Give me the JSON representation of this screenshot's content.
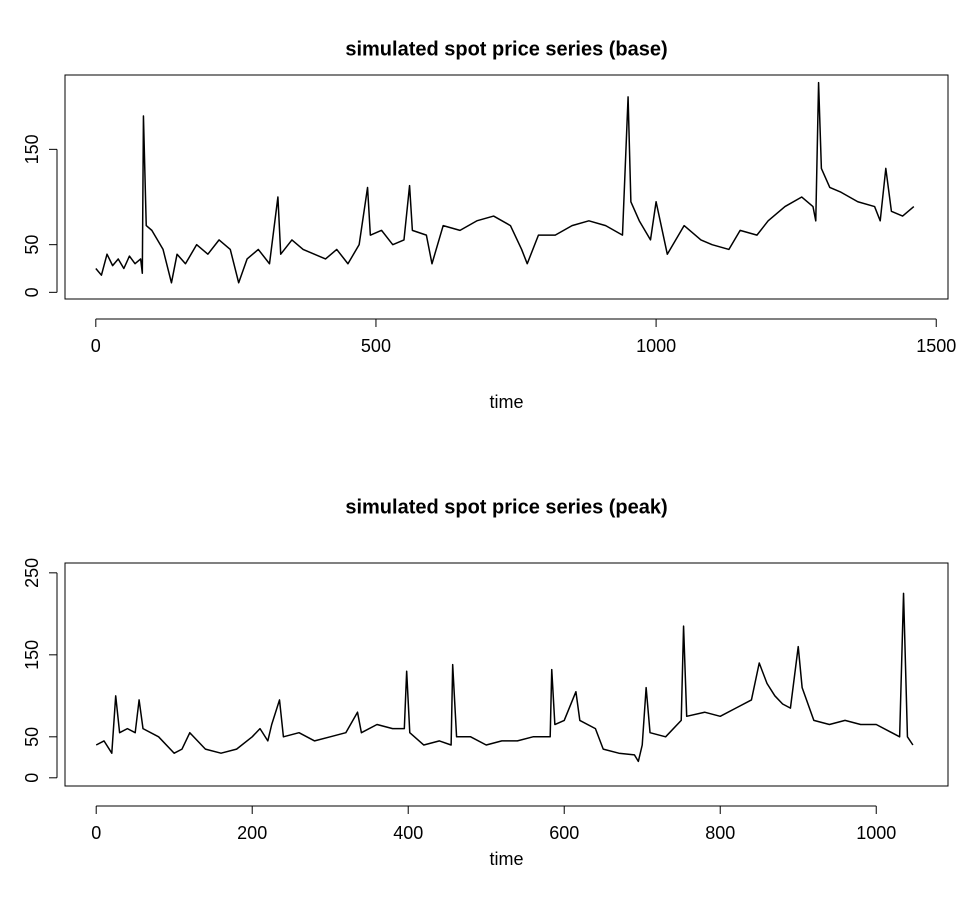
{
  "chart_data": [
    {
      "type": "line",
      "title": "simulated spot price series (base)",
      "x_label": "time",
      "x": [
        0,
        10,
        20,
        30,
        40,
        50,
        60,
        70,
        80,
        83,
        85,
        90,
        100,
        110,
        120,
        135,
        145,
        160,
        180,
        200,
        220,
        240,
        255,
        270,
        290,
        310,
        325,
        330,
        350,
        370,
        390,
        410,
        430,
        450,
        470,
        485,
        490,
        510,
        530,
        550,
        560,
        565,
        590,
        600,
        620,
        650,
        680,
        710,
        740,
        760,
        770,
        790,
        820,
        850,
        880,
        910,
        940,
        950,
        955,
        970,
        990,
        1000,
        1020,
        1050,
        1080,
        1100,
        1130,
        1150,
        1180,
        1200,
        1230,
        1260,
        1280,
        1285,
        1290,
        1295,
        1310,
        1330,
        1360,
        1390,
        1400,
        1410,
        1420,
        1440,
        1460
      ],
      "series": [
        {
          "color": "#000000",
          "values": [
            25,
            18,
            40,
            28,
            35,
            25,
            38,
            30,
            35,
            20,
            185,
            70,
            65,
            55,
            45,
            10,
            40,
            30,
            50,
            40,
            55,
            45,
            10,
            35,
            45,
            30,
            100,
            40,
            55,
            45,
            40,
            35,
            45,
            30,
            50,
            110,
            60,
            65,
            50,
            55,
            112,
            65,
            60,
            30,
            70,
            65,
            75,
            80,
            70,
            45,
            30,
            60,
            60,
            70,
            75,
            70,
            60,
            205,
            95,
            75,
            55,
            95,
            40,
            70,
            55,
            50,
            45,
            65,
            60,
            75,
            90,
            100,
            90,
            75,
            220,
            130,
            110,
            105,
            95,
            90,
            75,
            130,
            85,
            80,
            90
          ]
        }
      ],
      "xlim": [
        -55,
        1521
      ],
      "xticks": [
        0,
        500,
        1000,
        1500
      ],
      "ylim": [
        -7,
        228
      ],
      "yticks": [
        0,
        50,
        150
      ]
    },
    {
      "type": "line",
      "title": "simulated spot price series (peak)",
      "x_label": "time",
      "x": [
        0,
        10,
        20,
        25,
        30,
        40,
        50,
        55,
        60,
        80,
        100,
        110,
        120,
        140,
        160,
        180,
        200,
        210,
        220,
        225,
        235,
        240,
        260,
        280,
        300,
        320,
        335,
        340,
        360,
        380,
        395,
        398,
        402,
        420,
        440,
        455,
        457,
        462,
        480,
        500,
        520,
        540,
        560,
        582,
        584,
        588,
        600,
        615,
        620,
        640,
        650,
        670,
        690,
        695,
        700,
        705,
        710,
        730,
        750,
        753,
        757,
        780,
        800,
        820,
        840,
        850,
        860,
        870,
        880,
        890,
        900,
        905,
        920,
        940,
        960,
        980,
        1000,
        1020,
        1030,
        1035,
        1040,
        1047
      ],
      "series": [
        {
          "color": "#000000",
          "values": [
            40,
            45,
            30,
            100,
            55,
            60,
            55,
            95,
            60,
            50,
            30,
            35,
            55,
            35,
            30,
            35,
            50,
            60,
            45,
            65,
            95,
            50,
            55,
            45,
            50,
            55,
            80,
            55,
            65,
            60,
            60,
            130,
            55,
            40,
            45,
            40,
            138,
            50,
            50,
            40,
            45,
            45,
            50,
            50,
            132,
            65,
            70,
            105,
            70,
            60,
            35,
            30,
            28,
            20,
            40,
            110,
            55,
            50,
            70,
            185,
            75,
            80,
            75,
            85,
            95,
            140,
            115,
            100,
            90,
            85,
            160,
            110,
            70,
            65,
            70,
            65,
            65,
            55,
            50,
            225,
            50,
            40
          ]
        }
      ],
      "xlim": [
        -40,
        1092
      ],
      "xticks": [
        0,
        200,
        400,
        600,
        800,
        1000
      ],
      "ylim": [
        -10,
        262
      ],
      "yticks": [
        0,
        50,
        150,
        250
      ]
    }
  ]
}
